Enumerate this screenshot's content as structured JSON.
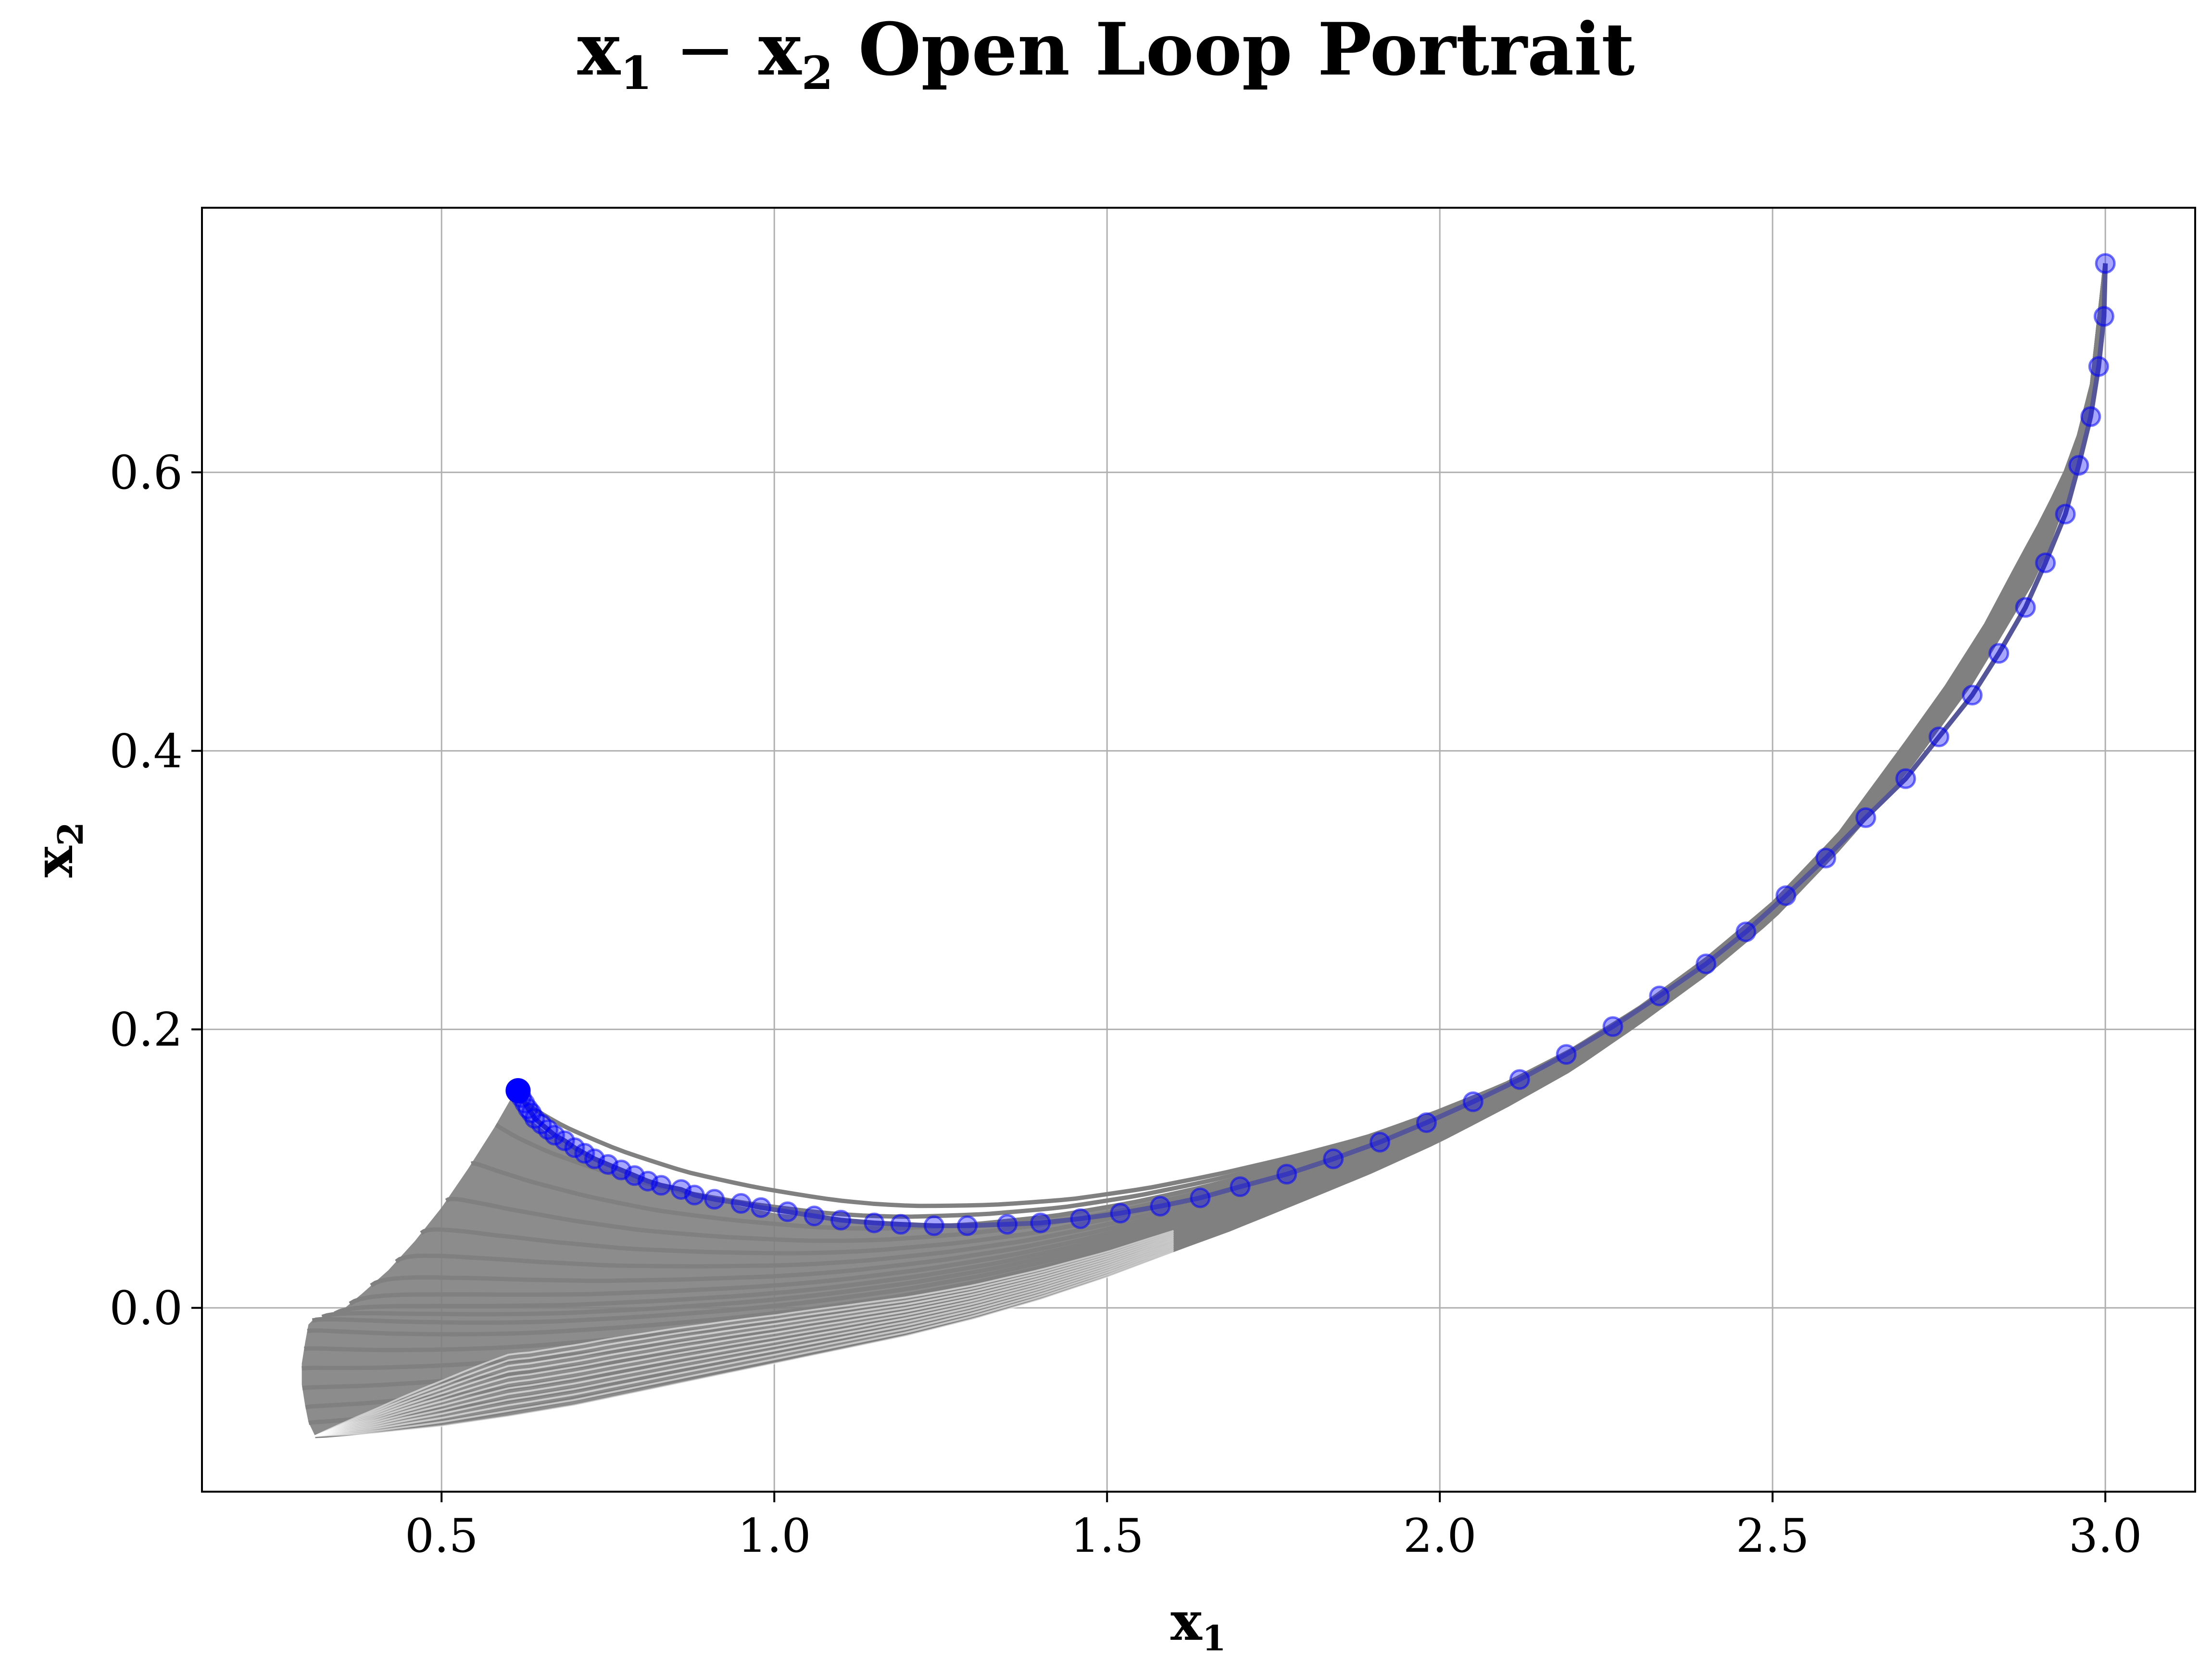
{
  "chart_data": {
    "type": "line",
    "title": "x1 − x2 Open Loop Portrait",
    "title_parts": {
      "v1": "x",
      "s1": "1",
      "op": " − ",
      "v2": "x",
      "s2": "2",
      "rest": " Open Loop Portrait"
    },
    "xlabel": "x1",
    "xlabel_parts": {
      "v": "x",
      "s": "1"
    },
    "ylabel": "x2",
    "ylabel_parts": {
      "v": "x",
      "s": "2"
    },
    "xlim": [
      0.14,
      3.135
    ],
    "ylim": [
      -0.132,
      0.79
    ],
    "xticks": [
      0.5,
      1.0,
      1.5,
      2.0,
      2.5,
      3.0
    ],
    "xtick_labels": [
      "0.5",
      "1.0",
      "1.5",
      "2.0",
      "2.5",
      "3.0"
    ],
    "yticks": [
      0.0,
      0.2,
      0.4,
      0.6
    ],
    "ytick_labels": [
      "0.0",
      "0.2",
      "0.4",
      "0.6"
    ],
    "grid": true,
    "colors": {
      "trajectory": "#808080",
      "main": "#0000ff",
      "main_line": "#55559a"
    },
    "series": [
      {
        "role": "open-loop trajectories (fan)",
        "count": 18,
        "color": "#808080",
        "family": {
          "x_start": 3.0,
          "y_start": 0.75,
          "x_end_range": [
            0.29,
            0.61
          ],
          "y_end_range": [
            -0.092,
            0.155
          ]
        },
        "bounding_top_curve": {
          "x": [
            3.0,
            2.995,
            2.985,
            2.97,
            2.945,
            2.91,
            2.87,
            2.82,
            2.76,
            2.7,
            2.6,
            2.5,
            2.4,
            2.3,
            2.2,
            2.1,
            2.0,
            1.9,
            1.8,
            1.7,
            1.6,
            1.5,
            1.4,
            1.3,
            1.25,
            1.2,
            1.1,
            1.0,
            0.9,
            0.8,
            0.72,
            0.66,
            0.62,
            0.61
          ],
          "y": [
            0.75,
            0.71,
            0.675,
            0.64,
            0.605,
            0.57,
            0.535,
            0.49,
            0.445,
            0.405,
            0.34,
            0.29,
            0.25,
            0.215,
            0.185,
            0.16,
            0.14,
            0.122,
            0.108,
            0.095,
            0.083,
            0.073,
            0.066,
            0.061,
            0.06,
            0.06,
            0.063,
            0.068,
            0.078,
            0.092,
            0.108,
            0.125,
            0.14,
            0.155
          ]
        },
        "bounding_bottom_curve": {
          "x": [
            3.0,
            2.97,
            2.9,
            2.8,
            2.7,
            2.6,
            2.5,
            2.4,
            2.3,
            2.2,
            2.1,
            2.0,
            1.9,
            1.8,
            1.7,
            1.6,
            1.5,
            1.4,
            1.3,
            1.2,
            1.1,
            1.0,
            0.9,
            0.8,
            0.7,
            0.6,
            0.5,
            0.4,
            0.31
          ],
          "y": [
            0.75,
            0.62,
            0.53,
            0.45,
            0.385,
            0.33,
            0.28,
            0.24,
            0.205,
            0.172,
            0.145,
            0.12,
            0.098,
            0.078,
            0.058,
            0.04,
            0.022,
            0.006,
            -0.008,
            -0.02,
            -0.03,
            -0.04,
            -0.05,
            -0.06,
            -0.07,
            -0.078,
            -0.085,
            -0.09,
            -0.092
          ]
        },
        "left_edge_curve": {
          "x": [
            0.61,
            0.58,
            0.54,
            0.5,
            0.46,
            0.42,
            0.38,
            0.35,
            0.33,
            0.31,
            0.3,
            0.295,
            0.29,
            0.29,
            0.295,
            0.3,
            0.31
          ],
          "y": [
            0.155,
            0.13,
            0.1,
            0.072,
            0.048,
            0.027,
            0.01,
            -0.002,
            -0.006,
            -0.007,
            -0.012,
            -0.025,
            -0.04,
            -0.055,
            -0.07,
            -0.082,
            -0.092
          ]
        }
      },
      {
        "role": "highlighted trajectory",
        "color": "#0000ff",
        "x": [
          3.0,
          2.998,
          2.99,
          2.978,
          2.96,
          2.94,
          2.91,
          2.88,
          2.84,
          2.8,
          2.75,
          2.7,
          2.64,
          2.58,
          2.52,
          2.46,
          2.4,
          2.33,
          2.26,
          2.19,
          2.12,
          2.05,
          1.98,
          1.91,
          1.84,
          1.77,
          1.7,
          1.64,
          1.58,
          1.52,
          1.46,
          1.4,
          1.35,
          1.29,
          1.24,
          1.19,
          1.15,
          1.1,
          1.06,
          1.02,
          0.98,
          0.95,
          0.91,
          0.88,
          0.86,
          0.83,
          0.81,
          0.79,
          0.77,
          0.75,
          0.73,
          0.715,
          0.7,
          0.685,
          0.67,
          0.66,
          0.65,
          0.64,
          0.635,
          0.63,
          0.625,
          0.62,
          0.617,
          0.615
        ],
        "y": [
          0.75,
          0.712,
          0.676,
          0.64,
          0.605,
          0.57,
          0.535,
          0.503,
          0.47,
          0.44,
          0.41,
          0.38,
          0.352,
          0.323,
          0.296,
          0.27,
          0.247,
          0.224,
          0.202,
          0.182,
          0.164,
          0.148,
          0.133,
          0.119,
          0.107,
          0.096,
          0.087,
          0.079,
          0.073,
          0.068,
          0.064,
          0.061,
          0.06,
          0.059,
          0.059,
          0.06,
          0.061,
          0.063,
          0.066,
          0.069,
          0.072,
          0.075,
          0.078,
          0.081,
          0.085,
          0.088,
          0.091,
          0.095,
          0.099,
          0.103,
          0.107,
          0.111,
          0.115,
          0.12,
          0.124,
          0.128,
          0.132,
          0.136,
          0.14,
          0.143,
          0.147,
          0.151,
          0.154,
          0.156
        ]
      }
    ]
  }
}
